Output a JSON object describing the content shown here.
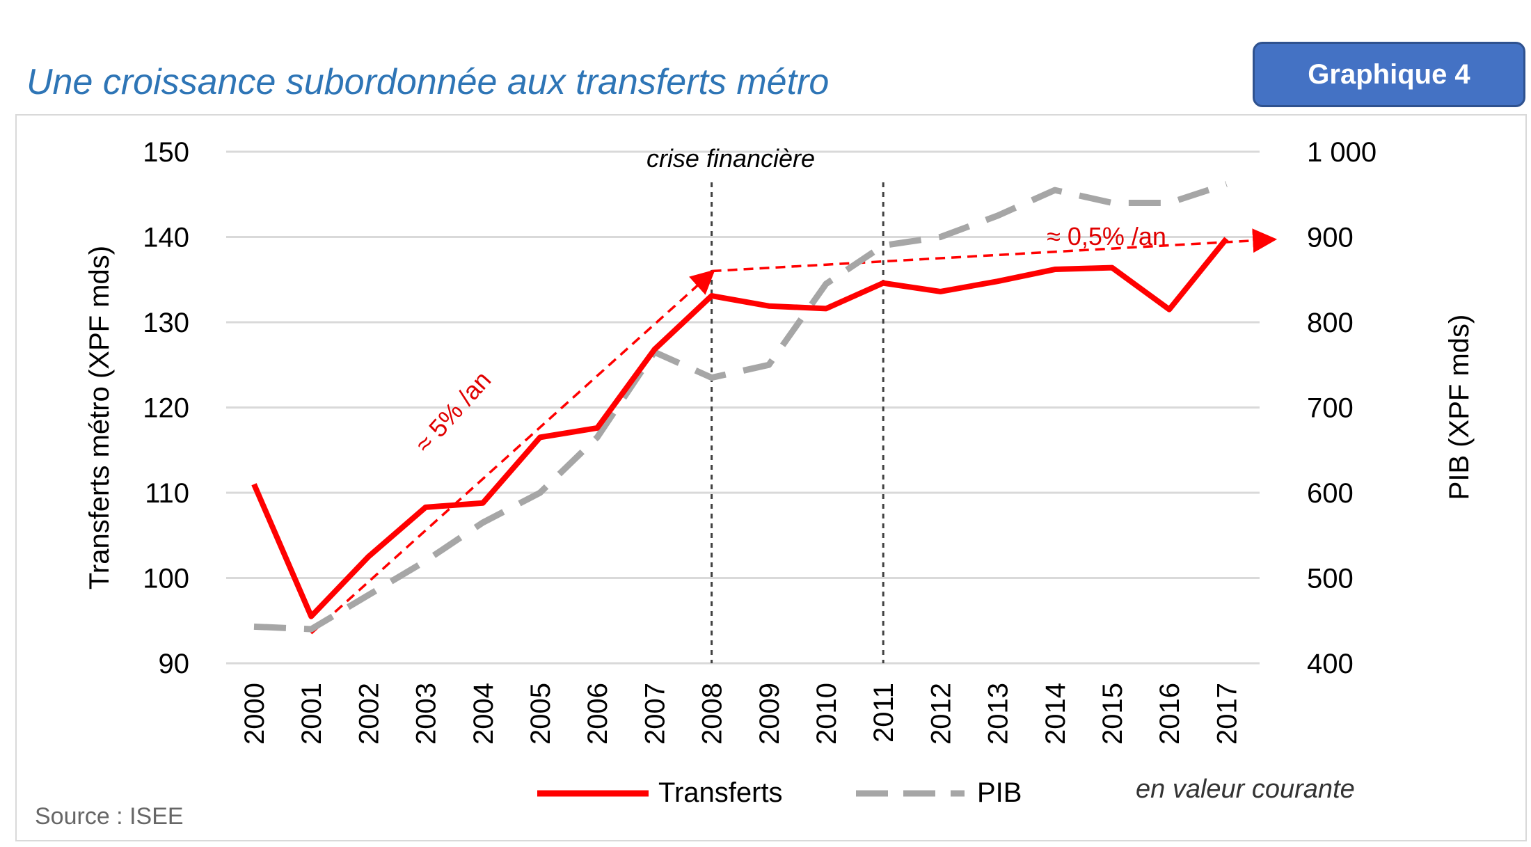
{
  "header": {
    "title": "Une croissance subordonnée aux transferts métro",
    "badge": "Graphique 4"
  },
  "footer": {
    "source": "Source : ISEE",
    "note": "en valeur courante"
  },
  "colors": {
    "transferts": "#ff0000",
    "pib": "#a6a6a6",
    "title": "#2e75b6",
    "badge": "#4472c4",
    "grid": "#d9d9d9"
  },
  "chart_data": {
    "type": "line",
    "title": "Une croissance subordonnée aux transferts métro",
    "x": [
      2000,
      2001,
      2002,
      2003,
      2004,
      2005,
      2006,
      2007,
      2008,
      2009,
      2010,
      2011,
      2012,
      2013,
      2014,
      2015,
      2016,
      2017
    ],
    "y_left": {
      "label": "Transferts métro (XPF mds)",
      "lim": [
        90,
        150
      ],
      "ticks": [
        90,
        100,
        110,
        120,
        130,
        140,
        150
      ]
    },
    "y_right": {
      "label": "PIB (XPF mds)",
      "lim": [
        400,
        1000
      ],
      "ticks": [
        400,
        500,
        600,
        700,
        800,
        900,
        1000
      ],
      "tick_labels": [
        "400",
        "500",
        "600",
        "700",
        "800",
        "900",
        "1 000"
      ]
    },
    "series": [
      {
        "name": "Transferts",
        "axis": "left",
        "style": "solid",
        "values": [
          111,
          95.5,
          102.5,
          108.3,
          108.8,
          116.5,
          117.6,
          126.8,
          133.1,
          131.9,
          131.6,
          134.6,
          133.6,
          134.8,
          136.2,
          136.4,
          131.5,
          139.8
        ]
      },
      {
        "name": "PIB",
        "axis": "right",
        "style": "dashed",
        "values": [
          443,
          440,
          480,
          520,
          565,
          600,
          665,
          765,
          735,
          750,
          845,
          890,
          900,
          925,
          955,
          940,
          940,
          962
        ]
      }
    ],
    "annotations": {
      "vlines": [
        {
          "x": 2008,
          "label": "crise financière"
        },
        {
          "x": 2011
        }
      ],
      "trends": [
        {
          "label": "≈ 5% /an",
          "from": [
            2001,
            93.5
          ],
          "to": [
            2008,
            135.8
          ]
        },
        {
          "label": "≈ 0,5% /an",
          "from": [
            2008,
            136
          ],
          "to": [
            2017.8,
            139.7
          ]
        }
      ]
    },
    "legend": {
      "position": "bottom",
      "items": [
        "Transferts",
        "PIB"
      ]
    },
    "grid": true
  }
}
